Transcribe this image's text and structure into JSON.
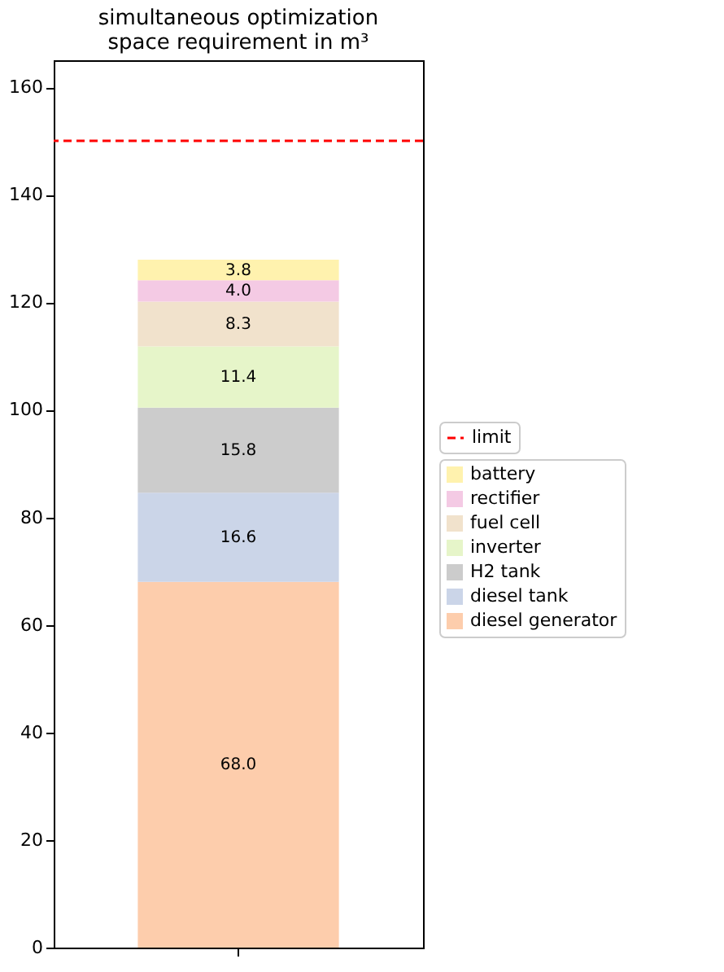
{
  "chart_data": {
    "type": "bar",
    "title": "simultaneous optimization\nspace requirement in m³",
    "categories": [
      null
    ],
    "stacked": true,
    "series": [
      {
        "name": "diesel generator",
        "color": "#fdcdac",
        "values": [
          68.0
        ],
        "value_labels": [
          "68.0"
        ]
      },
      {
        "name": "diesel tank",
        "color": "#cbd5e8",
        "values": [
          16.6
        ],
        "value_labels": [
          "16.6"
        ]
      },
      {
        "name": "H2 tank",
        "color": "#cccccc",
        "values": [
          15.8
        ],
        "value_labels": [
          "15.8"
        ]
      },
      {
        "name": "inverter",
        "color": "#e6f5c9",
        "values": [
          11.4
        ],
        "value_labels": [
          "11.4"
        ]
      },
      {
        "name": "fuel cell",
        "color": "#f1e2cc",
        "values": [
          8.3
        ],
        "value_labels": [
          "8.3"
        ]
      },
      {
        "name": "rectifier",
        "color": "#f4cae4",
        "values": [
          4.0
        ],
        "value_labels": [
          "4.0"
        ]
      },
      {
        "name": "battery",
        "color": "#fff2ae",
        "values": [
          3.8
        ],
        "value_labels": [
          "3.8"
        ]
      }
    ],
    "ylim": [
      0,
      165
    ],
    "yticks": [
      0,
      20,
      40,
      60,
      80,
      100,
      120,
      140,
      160
    ],
    "ref_lines": [
      {
        "axis": "y",
        "value": 150,
        "label": "limit",
        "color": "#ff0000",
        "line_style": "dashed"
      }
    ],
    "legend": "right",
    "tick_labels": "y",
    "grid": false
  }
}
